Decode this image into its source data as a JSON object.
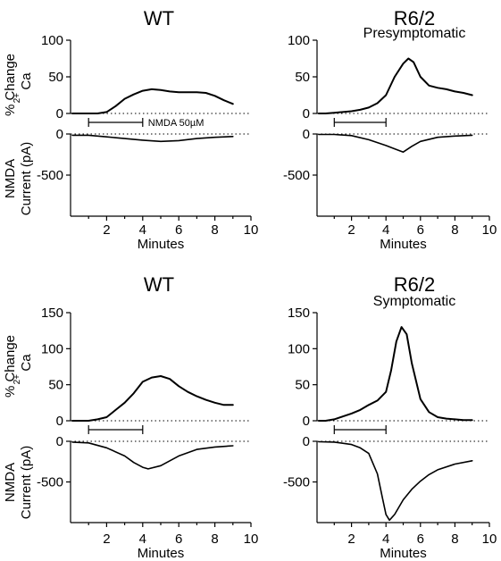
{
  "x_axis": {
    "label": "Minutes",
    "ticks": [
      2,
      4,
      6,
      8,
      10
    ],
    "range": [
      0,
      10
    ]
  },
  "ca_ylabel_1": "% Change",
  "ca_ylabel_2": "Ca",
  "ca_ylabel_sup": "2+",
  "current_ylabel_1": "NMDA",
  "current_ylabel_2": "Current (pA)",
  "application_label": "NMDA 50µM",
  "chart_data": [
    {
      "type": "line",
      "title": "WT",
      "subtitle": "",
      "ca": {
        "ylim": [
          0,
          100
        ],
        "yticks": [
          0,
          50,
          100
        ],
        "x": [
          0.1,
          0.5,
          1.0,
          1.5,
          2.0,
          2.5,
          3.0,
          3.5,
          4.0,
          4.5,
          5.0,
          5.5,
          6.0,
          6.5,
          7.0,
          7.5,
          8.0,
          8.5,
          9.0
        ],
        "y": [
          0,
          0,
          0,
          0,
          2,
          10,
          20,
          26,
          31,
          33,
          32,
          30,
          29,
          29,
          29,
          28,
          24,
          18,
          13
        ]
      },
      "current": {
        "ylim": [
          -1000,
          0
        ],
        "yticks": [
          0,
          -500
        ],
        "x": [
          0.1,
          1.0,
          2.0,
          3.0,
          4.0,
          5.0,
          6.0,
          7.0,
          8.0,
          9.0
        ],
        "y": [
          -15,
          -15,
          -35,
          -55,
          -75,
          -90,
          -80,
          -55,
          -40,
          -30
        ]
      },
      "application": {
        "start": 1,
        "end": 4,
        "label_shown": true
      }
    },
    {
      "type": "line",
      "title": "R6/2",
      "subtitle": "Presymptomatic",
      "ca": {
        "ylim": [
          0,
          100
        ],
        "yticks": [
          0,
          50,
          100
        ],
        "x": [
          0.1,
          0.5,
          1.0,
          1.5,
          2.0,
          2.5,
          3.0,
          3.5,
          4.0,
          4.5,
          5.0,
          5.3,
          5.6,
          6.0,
          6.5,
          7.0,
          7.5,
          8.0,
          8.5,
          9.0
        ],
        "y": [
          0,
          0,
          1,
          2,
          3,
          5,
          8,
          14,
          25,
          50,
          68,
          75,
          70,
          50,
          38,
          35,
          33,
          30,
          28,
          25
        ]
      },
      "current": {
        "ylim": [
          -1000,
          0
        ],
        "yticks": [
          0,
          -500
        ],
        "x": [
          0.1,
          1.0,
          2.0,
          3.0,
          4.0,
          4.5,
          5.0,
          5.5,
          6.0,
          7.0,
          8.0,
          9.0
        ],
        "y": [
          -5,
          -5,
          -20,
          -70,
          -140,
          -180,
          -220,
          -150,
          -90,
          -40,
          -25,
          -15
        ]
      },
      "application": {
        "start": 1,
        "end": 4,
        "label_shown": false
      }
    },
    {
      "type": "line",
      "title": "WT",
      "subtitle": "",
      "ca": {
        "ylim": [
          0,
          150
        ],
        "yticks": [
          0,
          50,
          100,
          150
        ],
        "x": [
          0.1,
          0.5,
          1.0,
          1.5,
          2.0,
          2.5,
          3.0,
          3.5,
          4.0,
          4.5,
          5.0,
          5.5,
          6.0,
          6.5,
          7.0,
          7.5,
          8.0,
          8.5,
          9.0
        ],
        "y": [
          0,
          0,
          0,
          2,
          5,
          15,
          25,
          38,
          54,
          60,
          62,
          58,
          48,
          40,
          34,
          29,
          25,
          22,
          22
        ]
      },
      "current": {
        "ylim": [
          -1000,
          0
        ],
        "yticks": [
          0,
          -500
        ],
        "x": [
          0.1,
          1.0,
          2.0,
          3.0,
          3.5,
          4.0,
          4.3,
          5.0,
          6.0,
          7.0,
          8.0,
          9.0
        ],
        "y": [
          -10,
          -20,
          -80,
          -180,
          -260,
          -320,
          -340,
          -300,
          -180,
          -100,
          -70,
          -55
        ]
      },
      "application": {
        "start": 1,
        "end": 4,
        "label_shown": false
      }
    },
    {
      "type": "line",
      "title": "R6/2",
      "subtitle": "Symptomatic",
      "ca": {
        "ylim": [
          0,
          150
        ],
        "yticks": [
          0,
          50,
          100,
          150
        ],
        "x": [
          0.1,
          0.5,
          1.0,
          1.5,
          2.0,
          2.5,
          3.0,
          3.5,
          4.0,
          4.3,
          4.6,
          4.9,
          5.2,
          5.5,
          6.0,
          6.5,
          7.0,
          7.5,
          8.0,
          8.5,
          9.0
        ],
        "y": [
          0,
          0,
          2,
          6,
          10,
          15,
          22,
          28,
          40,
          70,
          110,
          130,
          120,
          80,
          30,
          12,
          5,
          3,
          2,
          1,
          1
        ]
      },
      "current": {
        "ylim": [
          -1000,
          0
        ],
        "yticks": [
          0,
          -500
        ],
        "x": [
          0.1,
          1.0,
          2.0,
          2.5,
          3.0,
          3.5,
          3.8,
          4.0,
          4.2,
          4.5,
          5.0,
          5.5,
          6.0,
          6.5,
          7.0,
          8.0,
          9.0
        ],
        "y": [
          -5,
          -10,
          -40,
          -80,
          -150,
          -400,
          -700,
          -900,
          -970,
          -900,
          -720,
          -590,
          -490,
          -410,
          -350,
          -280,
          -240
        ]
      },
      "application": {
        "start": 1,
        "end": 4,
        "label_shown": false
      }
    }
  ]
}
